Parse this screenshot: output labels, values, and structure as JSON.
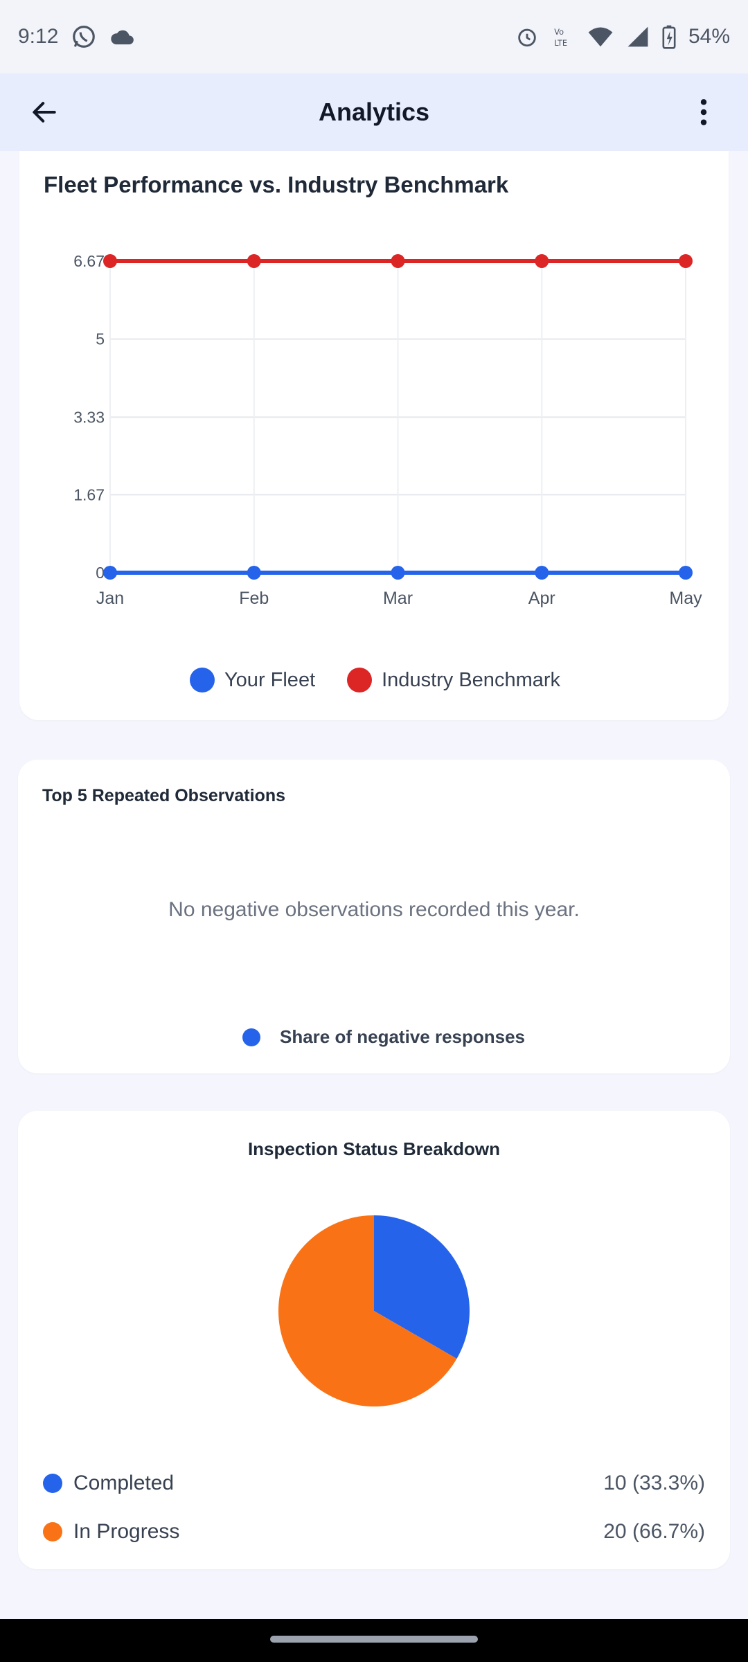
{
  "status_bar": {
    "time": "9:12",
    "battery": "54%",
    "icons": [
      "whatsapp-icon",
      "cloud-icon",
      "alarm-icon",
      "volte-icon",
      "wifi-icon",
      "signal-icon",
      "battery-icon"
    ]
  },
  "app_bar": {
    "title": "Analytics",
    "back_icon": "arrow-left-icon",
    "menu_icon": "more-vert-icon"
  },
  "fleet_card": {
    "title": "Fleet Performance vs. Industry Benchmark",
    "legend": [
      {
        "label": "Your Fleet",
        "color": "#2563eb"
      },
      {
        "label": "Industry Benchmark",
        "color": "#dc2626"
      }
    ]
  },
  "observations_card": {
    "title": "Top 5 Repeated Observations",
    "empty_message": "No negative observations recorded this year.",
    "legend_label": "Share of negative responses",
    "legend_color": "#2563eb"
  },
  "inspection_card": {
    "title": "Inspection Status Breakdown",
    "rows": [
      {
        "label": "Completed",
        "value": "10 (33.3%)",
        "color": "#2563eb"
      },
      {
        "label": "In Progress",
        "value": "20 (66.7%)",
        "color": "#f97316"
      }
    ]
  },
  "chart_data": [
    {
      "type": "line",
      "x": [
        "Jan",
        "Feb",
        "Mar",
        "Apr",
        "May"
      ],
      "y_ticks": [
        "0",
        "1.67",
        "3.33",
        "5",
        "6.67"
      ],
      "ylim": [
        0,
        6.67
      ],
      "grid": true,
      "legend_position": "bottom",
      "series": [
        {
          "name": "Your Fleet",
          "color": "#2563eb",
          "values": [
            0,
            0,
            0,
            0,
            0
          ]
        },
        {
          "name": "Industry Benchmark",
          "color": "#dc2626",
          "values": [
            6.67,
            6.67,
            6.67,
            6.67,
            6.67
          ]
        }
      ]
    },
    {
      "type": "pie",
      "title": "Inspection Status Breakdown",
      "categories": [
        "Completed",
        "In Progress"
      ],
      "values": [
        10,
        20
      ],
      "colors": [
        "#2563eb",
        "#f97316"
      ]
    }
  ]
}
